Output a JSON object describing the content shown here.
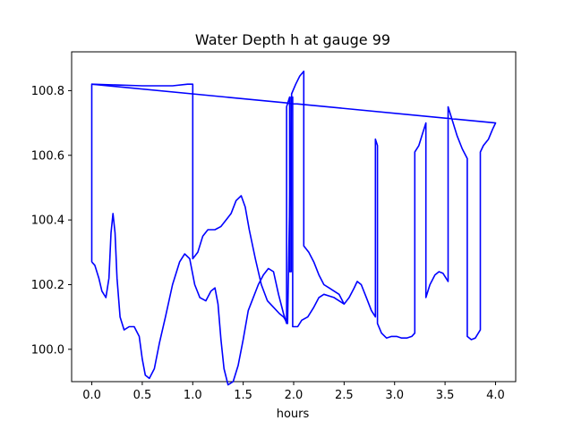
{
  "chart_data": {
    "type": "line",
    "title": "Water Depth h at gauge 99",
    "xlabel": "hours",
    "ylabel": "",
    "xlim": [
      -0.2,
      4.2
    ],
    "ylim": [
      99.9,
      100.92
    ],
    "xticks": [
      0.0,
      0.5,
      1.0,
      1.5,
      2.0,
      2.5,
      3.0,
      3.5,
      4.0
    ],
    "xtick_labels": [
      "0.0",
      "0.5",
      "1.0",
      "1.5",
      "2.0",
      "2.5",
      "3.0",
      "3.5",
      "4.0"
    ],
    "yticks": [
      100.0,
      100.2,
      100.4,
      100.6,
      100.8
    ],
    "ytick_labels": [
      "100.0",
      "100.2",
      "100.4",
      "100.6",
      "100.8"
    ],
    "grid": false,
    "series": [
      {
        "color": "#0000ff",
        "points": [
          [
            0.0,
            100.27
          ],
          [
            0.03,
            100.26
          ],
          [
            0.07,
            100.22
          ],
          [
            0.1,
            100.18
          ],
          [
            0.14,
            100.16
          ],
          [
            0.17,
            100.22
          ],
          [
            0.19,
            100.36
          ],
          [
            0.21,
            100.42
          ],
          [
            0.23,
            100.36
          ],
          [
            0.25,
            100.22
          ],
          [
            0.28,
            100.1
          ],
          [
            0.32,
            100.06
          ],
          [
            0.37,
            100.07
          ],
          [
            0.42,
            100.07
          ],
          [
            0.47,
            100.04
          ],
          [
            0.5,
            99.97
          ],
          [
            0.53,
            99.92
          ],
          [
            0.57,
            99.91
          ],
          [
            0.62,
            99.94
          ],
          [
            0.67,
            100.02
          ],
          [
            0.73,
            100.1
          ],
          [
            0.8,
            100.2
          ],
          [
            0.87,
            100.27
          ],
          [
            0.92,
            100.295
          ],
          [
            0.97,
            100.28
          ],
          [
            1.02,
            100.2
          ],
          [
            1.07,
            100.16
          ],
          [
            1.13,
            100.15
          ],
          [
            1.18,
            100.18
          ],
          [
            1.22,
            100.19
          ],
          [
            1.25,
            100.14
          ],
          [
            1.28,
            100.03
          ],
          [
            1.31,
            99.94
          ],
          [
            1.35,
            99.89
          ],
          [
            1.4,
            99.9
          ],
          [
            1.45,
            99.95
          ],
          [
            1.5,
            100.03
          ],
          [
            1.55,
            100.12
          ],
          [
            1.6,
            100.16
          ],
          [
            1.65,
            100.2
          ],
          [
            1.7,
            100.23
          ],
          [
            1.75,
            100.25
          ],
          [
            1.8,
            100.24
          ],
          [
            1.85,
            100.17
          ],
          [
            1.9,
            100.11
          ],
          [
            1.93,
            100.08
          ],
          [
            1.93,
            100.75
          ],
          [
            1.96,
            100.78
          ],
          [
            1.96,
            100.24
          ],
          [
            1.975,
            100.24
          ],
          [
            1.975,
            100.78
          ],
          [
            1.99,
            100.78
          ],
          [
            1.99,
            100.07
          ],
          [
            2.04,
            100.07
          ],
          [
            2.08,
            100.09
          ],
          [
            2.14,
            100.1
          ],
          [
            2.2,
            100.13
          ],
          [
            2.25,
            100.16
          ],
          [
            2.3,
            100.17
          ],
          [
            2.35,
            100.165
          ],
          [
            2.4,
            100.16
          ],
          [
            2.45,
            100.15
          ],
          [
            2.5,
            100.14
          ],
          [
            2.55,
            100.16
          ],
          [
            2.6,
            100.19
          ],
          [
            2.63,
            100.21
          ],
          [
            2.67,
            100.2
          ],
          [
            2.72,
            100.16
          ],
          [
            2.77,
            100.12
          ],
          [
            2.81,
            100.1
          ],
          [
            2.81,
            100.65
          ],
          [
            2.83,
            100.63
          ],
          [
            2.83,
            100.08
          ],
          [
            2.87,
            100.05
          ],
          [
            2.92,
            100.035
          ],
          [
            2.97,
            100.04
          ],
          [
            3.02,
            100.04
          ],
          [
            3.07,
            100.035
          ],
          [
            3.12,
            100.035
          ],
          [
            3.17,
            100.04
          ],
          [
            3.2,
            100.05
          ],
          [
            3.2,
            100.61
          ],
          [
            3.24,
            100.63
          ],
          [
            3.28,
            100.67
          ],
          [
            3.31,
            100.7
          ],
          [
            3.31,
            100.16
          ],
          [
            3.35,
            100.2
          ],
          [
            3.4,
            100.23
          ],
          [
            3.44,
            100.24
          ],
          [
            3.48,
            100.235
          ],
          [
            3.53,
            100.21
          ],
          [
            3.53,
            100.75
          ],
          [
            3.57,
            100.71
          ],
          [
            3.62,
            100.66
          ],
          [
            3.67,
            100.62
          ],
          [
            3.72,
            100.59
          ],
          [
            3.72,
            100.04
          ],
          [
            3.76,
            100.03
          ],
          [
            3.8,
            100.035
          ],
          [
            3.85,
            100.06
          ],
          [
            3.85,
            100.61
          ],
          [
            3.88,
            100.63
          ],
          [
            3.93,
            100.65
          ],
          [
            3.97,
            100.68
          ],
          [
            4.0,
            100.7
          ],
          [
            0.0,
            100.82
          ],
          [
            0.0,
            100.27
          ]
        ]
      },
      {
        "color": "#0000ff",
        "points": [
          [
            0.0,
            100.82
          ],
          [
            0.5,
            100.815
          ],
          [
            0.8,
            100.815
          ],
          [
            0.95,
            100.82
          ],
          [
            1.0,
            100.82
          ],
          [
            1.0,
            100.28
          ],
          [
            1.05,
            100.3
          ],
          [
            1.1,
            100.35
          ],
          [
            1.15,
            100.37
          ],
          [
            1.22,
            100.37
          ],
          [
            1.28,
            100.38
          ],
          [
            1.33,
            100.4
          ],
          [
            1.38,
            100.42
          ],
          [
            1.43,
            100.46
          ],
          [
            1.48,
            100.475
          ],
          [
            1.52,
            100.44
          ],
          [
            1.56,
            100.37
          ],
          [
            1.62,
            100.28
          ],
          [
            1.68,
            100.2
          ],
          [
            1.74,
            100.15
          ],
          [
            1.8,
            100.13
          ],
          [
            1.86,
            100.11
          ],
          [
            1.9,
            100.1
          ],
          [
            1.94,
            100.08
          ],
          [
            1.98,
            100.79
          ],
          [
            2.02,
            100.82
          ],
          [
            2.06,
            100.845
          ],
          [
            2.1,
            100.86
          ],
          [
            2.1,
            100.32
          ],
          [
            2.15,
            100.3
          ],
          [
            2.2,
            100.27
          ],
          [
            2.25,
            100.23
          ],
          [
            2.3,
            100.2
          ],
          [
            2.35,
            100.19
          ],
          [
            2.4,
            100.18
          ],
          [
            2.45,
            100.17
          ],
          [
            2.5,
            100.14
          ]
        ]
      }
    ]
  }
}
